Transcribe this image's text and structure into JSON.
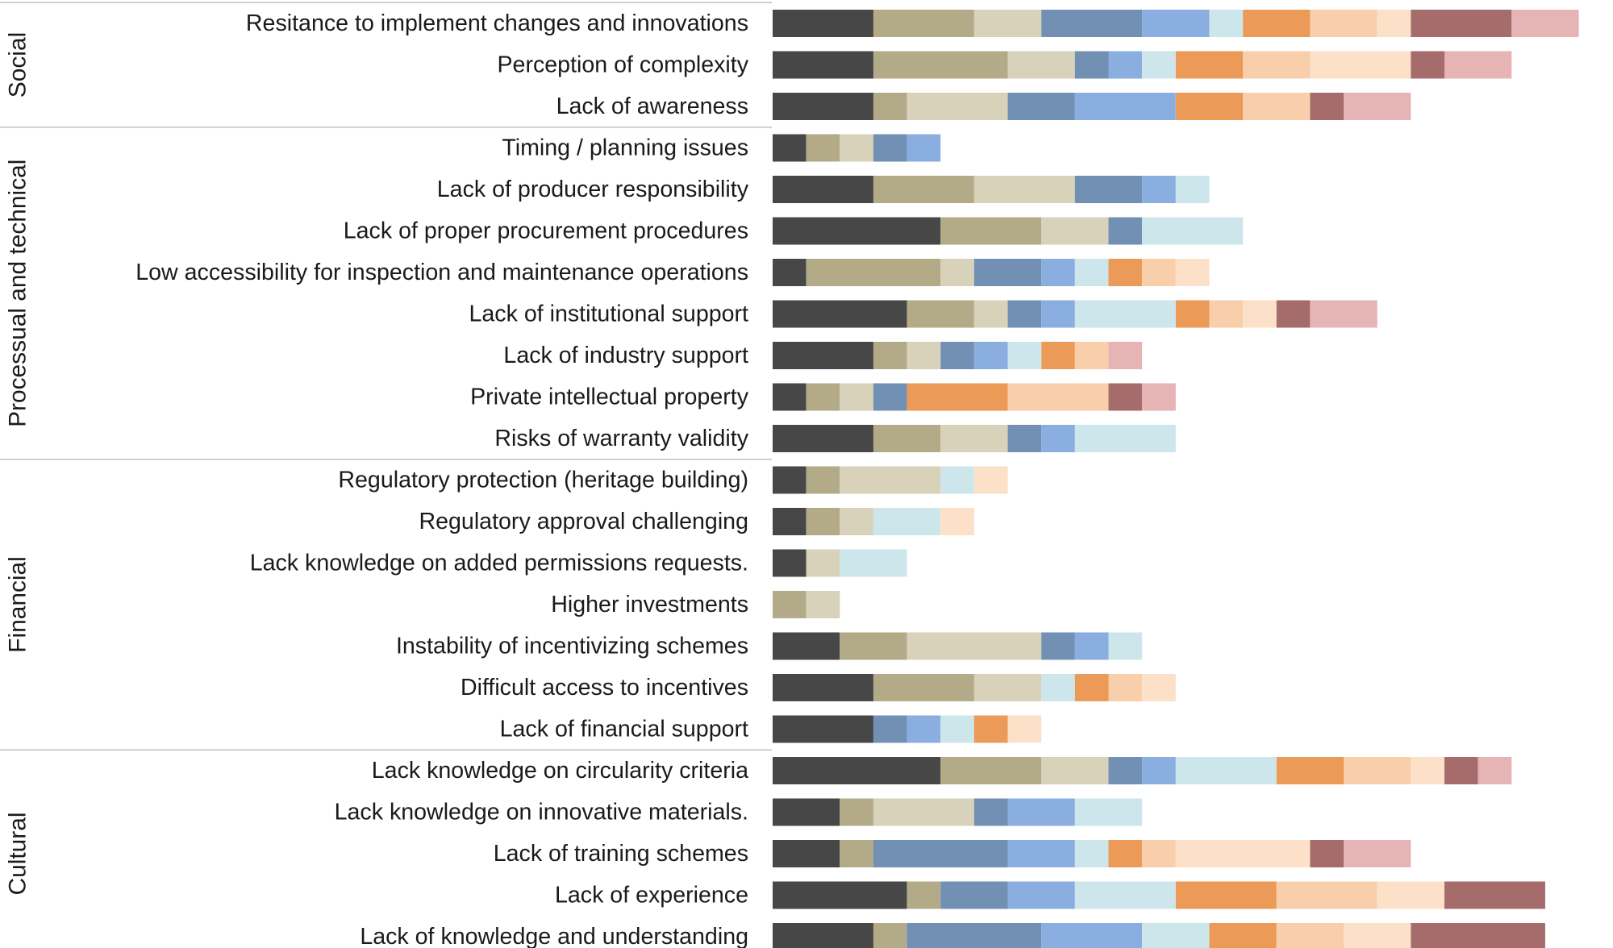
{
  "chart_data": {
    "type": "bar",
    "orientation": "horizontal",
    "stacked": true,
    "title": "",
    "xlabel": "",
    "ylabel": "",
    "unit_label": "count",
    "xlim": [
      0,
      24
    ],
    "grid": false,
    "legend": "none",
    "segment_colors": [
      "#474747",
      "#b3ab88",
      "#d8d2ba",
      "#7190b4",
      "#8aaee0",
      "#cde6ec",
      "#ec9a58",
      "#f8ceab",
      "#fce1c8",
      "#a66c6c",
      "#e6b4b4"
    ],
    "groups": [
      {
        "name": "Social",
        "categories": [
          0,
          1,
          2
        ]
      },
      {
        "name": "Processual and technical",
        "categories": [
          3,
          4,
          5,
          6,
          7,
          8,
          9,
          10
        ]
      },
      {
        "name": "Financial",
        "categories": [
          11,
          12,
          13,
          14,
          15,
          16,
          17
        ]
      },
      {
        "name": "Cultural",
        "categories": [
          18,
          19,
          20,
          21,
          22
        ]
      }
    ],
    "categories": [
      "Resitance to implement changes and innovations",
      "Perception of complexity",
      "Lack of awareness",
      "Timing / planning issues",
      "Lack of producer responsibility",
      "Lack of proper procurement procedures",
      "Low accessibility for inspection and maintenance operations",
      "Lack of institutional support",
      "Lack of industry support",
      "Private intellectual property",
      "Risks of warranty validity",
      "Regulatory protection (heritage building)",
      "Regulatory approval challenging",
      "Lack knowledge on added permissions requests.",
      "Higher investments",
      "Instability of incentivizing schemes",
      "Difficult access to incentives",
      "Lack of financial support",
      "Lack knowledge on circularity criteria",
      "Lack knowledge on innovative materials.",
      "Lack of training schemes",
      "Lack of experience",
      "Lack of knowledge and understanding"
    ],
    "values": [
      [
        3,
        3,
        2,
        3,
        2,
        1,
        2,
        2,
        1,
        3,
        2
      ],
      [
        3,
        4,
        2,
        1,
        1,
        1,
        2,
        2,
        3,
        1,
        2
      ],
      [
        3,
        1,
        3,
        2,
        3,
        0,
        2,
        2,
        0,
        1,
        2
      ],
      [
        1,
        1,
        1,
        1,
        1,
        0,
        0,
        0,
        0,
        0,
        0
      ],
      [
        3,
        3,
        3,
        2,
        1,
        1,
        0,
        0,
        0,
        0,
        0
      ],
      [
        5,
        3,
        2,
        1,
        0,
        3,
        0,
        0,
        0,
        0,
        0
      ],
      [
        1,
        4,
        1,
        2,
        1,
        1,
        1,
        1,
        1,
        0,
        0
      ],
      [
        4,
        2,
        1,
        1,
        1,
        3,
        1,
        1,
        1,
        1,
        2
      ],
      [
        3,
        1,
        1,
        1,
        1,
        1,
        1,
        1,
        0,
        0,
        1
      ],
      [
        1,
        1,
        1,
        1,
        0,
        0,
        3,
        3,
        0,
        1,
        1
      ],
      [
        3,
        2,
        2,
        1,
        1,
        3,
        0,
        0,
        0,
        0,
        0
      ],
      [
        1,
        1,
        3,
        0,
        0,
        1,
        0,
        0,
        1,
        0,
        0
      ],
      [
        1,
        1,
        1,
        0,
        0,
        2,
        0,
        0,
        1,
        0,
        0
      ],
      [
        1,
        0,
        1,
        0,
        0,
        2,
        0,
        0,
        0,
        0,
        0
      ],
      [
        0,
        1,
        1,
        0,
        0,
        0,
        0,
        0,
        0,
        0,
        0
      ],
      [
        2,
        2,
        4,
        1,
        1,
        1,
        0,
        0,
        0,
        0,
        0
      ],
      [
        3,
        3,
        2,
        0,
        0,
        1,
        1,
        1,
        1,
        0,
        0
      ],
      [
        3,
        0,
        0,
        1,
        1,
        1,
        1,
        0,
        1,
        0,
        0
      ],
      [
        5,
        3,
        2,
        1,
        1,
        3,
        2,
        2,
        1,
        1,
        1
      ],
      [
        2,
        1,
        3,
        1,
        2,
        2,
        0,
        0,
        0,
        0,
        0
      ],
      [
        2,
        1,
        0,
        4,
        2,
        1,
        1,
        1,
        4,
        1,
        2
      ],
      [
        4,
        1,
        0,
        2,
        2,
        3,
        3,
        3,
        2,
        3,
        0
      ],
      [
        3,
        1,
        0,
        4,
        3,
        2,
        2,
        2,
        2,
        4,
        0
      ]
    ]
  }
}
